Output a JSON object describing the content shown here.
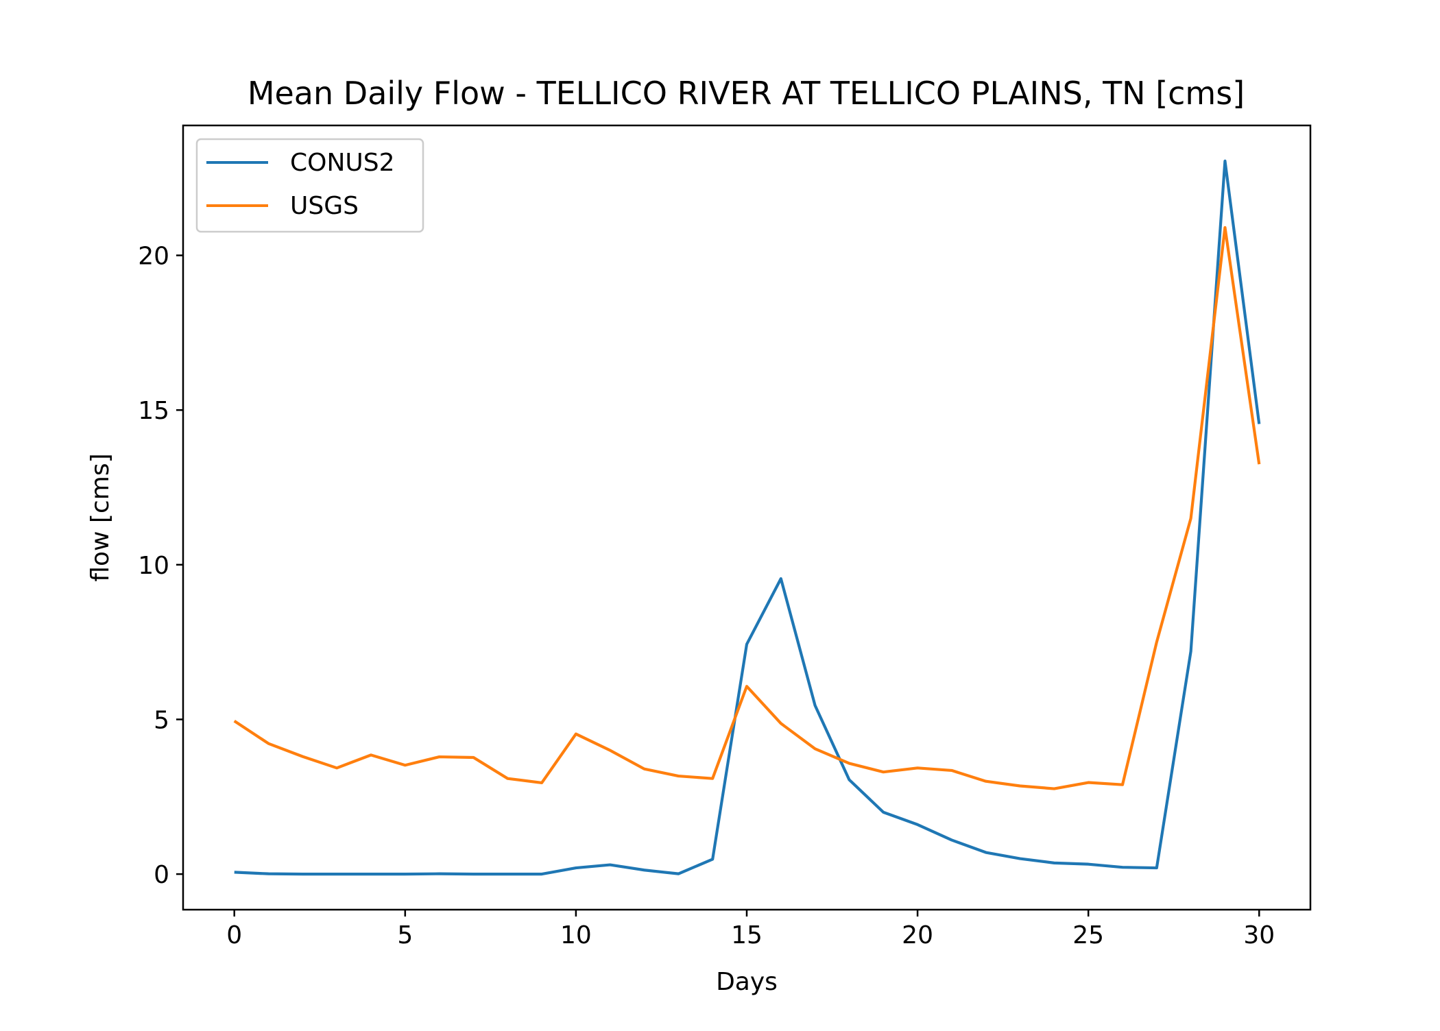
{
  "chart_data": {
    "type": "line",
    "title": "Mean Daily Flow - TELLICO RIVER AT TELLICO PLAINS, TN [cms]",
    "xlabel": "Days",
    "ylabel": "flow [cms]",
    "xlim": [
      -1.5,
      31.5
    ],
    "ylim": [
      -1.15,
      24.2
    ],
    "xticks": [
      0,
      5,
      10,
      15,
      20,
      25,
      30
    ],
    "yticks": [
      0,
      5,
      10,
      15,
      20
    ],
    "grid": false,
    "legend_position": "upper-left",
    "x": [
      0,
      1,
      2,
      3,
      4,
      5,
      6,
      7,
      8,
      9,
      10,
      11,
      12,
      13,
      14,
      15,
      16,
      17,
      18,
      19,
      20,
      21,
      22,
      23,
      24,
      25,
      26,
      27,
      28,
      29,
      30
    ],
    "series": [
      {
        "name": "CONUS2",
        "color": "#1f77b4",
        "values": [
          0.06,
          0.01,
          0.0,
          0.0,
          0.0,
          0.0,
          0.01,
          0.0,
          0.0,
          0.0,
          0.2,
          0.3,
          0.13,
          0.01,
          0.48,
          7.43,
          9.55,
          5.45,
          3.05,
          2.0,
          1.6,
          1.1,
          0.7,
          0.5,
          0.36,
          0.32,
          0.22,
          0.2,
          7.2,
          23.05,
          14.55
        ]
      },
      {
        "name": "USGS",
        "color": "#ff7f0e",
        "values": [
          4.95,
          4.22,
          3.8,
          3.43,
          3.85,
          3.52,
          3.79,
          3.77,
          3.09,
          2.95,
          4.53,
          4.0,
          3.4,
          3.17,
          3.09,
          6.07,
          4.87,
          4.05,
          3.58,
          3.3,
          3.43,
          3.35,
          3.0,
          2.85,
          2.76,
          2.96,
          2.89,
          7.5,
          11.5,
          20.9,
          13.25
        ]
      }
    ]
  }
}
